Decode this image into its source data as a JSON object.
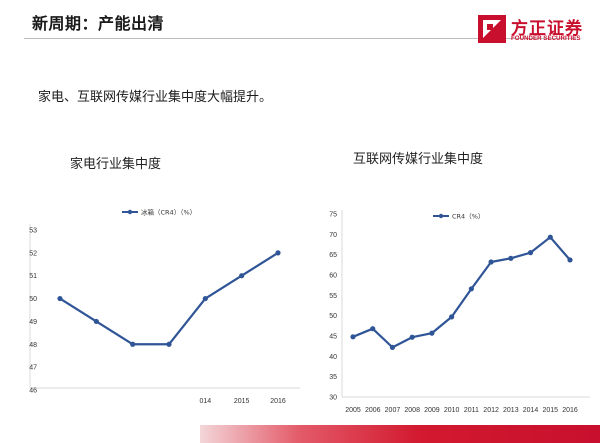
{
  "header": {
    "title": "新周期：产能出清",
    "logo_cn": "方正证券",
    "logo_en": "FOUNDER SECURITIES"
  },
  "subtitle": "家电、互联网传媒行业集中度大幅提升。",
  "colors": {
    "series": "#2f5597",
    "brand_red": "#c8102e",
    "axis": "#d9d9d9"
  },
  "chart_data": [
    {
      "type": "line",
      "caption": "家电行业集中度",
      "legend": "冰箱（CR4）（%）",
      "legend_position": "top",
      "x_tick_labels": [
        "",
        "",
        "",
        "",
        "014",
        "2015",
        "2016"
      ],
      "values": [
        50,
        49,
        48,
        48,
        50,
        51,
        52
      ],
      "y_ticks": [
        46,
        47,
        48,
        49,
        50,
        51,
        52,
        53
      ],
      "ylim": [
        46,
        53
      ]
    },
    {
      "type": "line",
      "caption": "互联网传媒行业集中度",
      "legend": "CR4（%）",
      "legend_position": "top",
      "x_tick_labels": [
        "2005",
        "2006",
        "2007",
        "2008",
        "2009",
        "2010",
        "2011",
        "2012",
        "2013",
        "2014",
        "2015",
        "2016"
      ],
      "values": [
        44.8,
        46.8,
        42.2,
        44.7,
        45.7,
        49.7,
        56.6,
        63.2,
        64.1,
        65.5,
        69.3,
        63.7
      ],
      "y_ticks": [
        30,
        35,
        40,
        45,
        50,
        55,
        60,
        65,
        70,
        75
      ],
      "ylim": [
        30,
        75
      ]
    }
  ]
}
